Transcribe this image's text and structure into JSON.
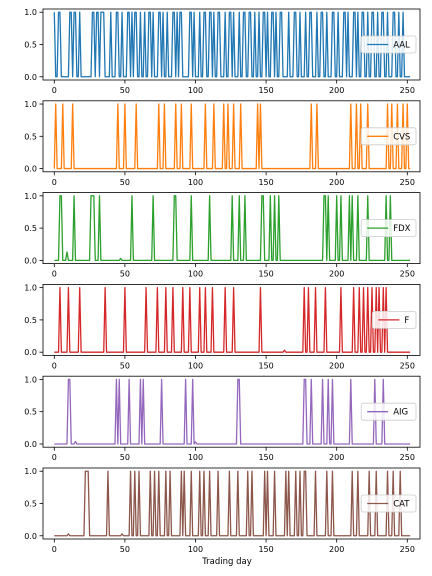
{
  "chart_data": {
    "type": "line",
    "xlabel": "Trading day",
    "xlim": [
      -8,
      259
    ],
    "x_ticks": [
      0,
      50,
      100,
      150,
      200,
      250
    ],
    "ylim": [
      -0.05,
      1.05
    ],
    "y_ticks": [
      0.0,
      0.5,
      1.0
    ],
    "x_start": 0,
    "x_end": 252,
    "legend_position": "right",
    "panels": [
      {
        "name": "AAL",
        "color": "#1f77b4",
        "events": [
          [
            0,
            1
          ],
          [
            3,
            2
          ],
          [
            11,
            2
          ],
          [
            14,
            2
          ],
          [
            18,
            1
          ],
          [
            27,
            2
          ],
          [
            30,
            2
          ],
          [
            33,
            3
          ],
          [
            40,
            1
          ],
          [
            44,
            2
          ],
          [
            48,
            1
          ],
          [
            52,
            2
          ],
          [
            55,
            1
          ],
          [
            57,
            2
          ],
          [
            61,
            1
          ],
          [
            64,
            1
          ],
          [
            67,
            2
          ],
          [
            70,
            1
          ],
          [
            74,
            2
          ],
          [
            77,
            1
          ],
          [
            80,
            1
          ],
          [
            84,
            2
          ],
          [
            87,
            1
          ],
          [
            89,
            2
          ],
          [
            96,
            2
          ],
          [
            99,
            1
          ],
          [
            103,
            1
          ],
          [
            106,
            2
          ],
          [
            110,
            2
          ],
          [
            113,
            1
          ],
          [
            116,
            2
          ],
          [
            121,
            1
          ],
          [
            124,
            2
          ],
          [
            127,
            1
          ],
          [
            131,
            1
          ],
          [
            134,
            2
          ],
          [
            138,
            2
          ],
          [
            142,
            1
          ],
          [
            145,
            1
          ],
          [
            148,
            2
          ],
          [
            151,
            1
          ],
          [
            154,
            2
          ],
          [
            157,
            1
          ],
          [
            160,
            2
          ],
          [
            166,
            1
          ],
          [
            170,
            2
          ],
          [
            174,
            1
          ],
          [
            178,
            1
          ],
          [
            181,
            2
          ],
          [
            186,
            1
          ],
          [
            189,
            2
          ],
          [
            193,
            1
          ],
          [
            197,
            2
          ],
          [
            201,
            1
          ],
          [
            205,
            2
          ],
          [
            208,
            1
          ],
          [
            212,
            2
          ],
          [
            215,
            1
          ],
          [
            218,
            2
          ],
          [
            222,
            1
          ],
          [
            225,
            2
          ],
          [
            229,
            1
          ],
          [
            232,
            2
          ],
          [
            236,
            1
          ],
          [
            240,
            2
          ],
          [
            244,
            1
          ],
          [
            247,
            1
          ]
        ]
      },
      {
        "name": "CVS",
        "color": "#ff7f0e",
        "events": [
          [
            1,
            1
          ],
          [
            6,
            1
          ],
          [
            13,
            1
          ],
          [
            45,
            1
          ],
          [
            50,
            1
          ],
          [
            58,
            1
          ],
          [
            74,
            1
          ],
          [
            78,
            1
          ],
          [
            86,
            1
          ],
          [
            90,
            1
          ],
          [
            97,
            1
          ],
          [
            107,
            1
          ],
          [
            113,
            1
          ],
          [
            120,
            1
          ],
          [
            123,
            1
          ],
          [
            127,
            1
          ],
          [
            132,
            1
          ],
          [
            144,
            1
          ],
          [
            146,
            1
          ],
          [
            182,
            1
          ],
          [
            186,
            1
          ],
          [
            210,
            1
          ],
          [
            214,
            1
          ],
          [
            217,
            1
          ],
          [
            222,
            1
          ],
          [
            236,
            1
          ],
          [
            239,
            1
          ],
          [
            243,
            1
          ],
          [
            247,
            1
          ],
          [
            250,
            1
          ]
        ]
      },
      {
        "name": "FDX",
        "color": "#2ca02c",
        "events": [
          [
            4,
            2
          ],
          [
            14,
            1
          ],
          [
            26,
            3
          ],
          [
            32,
            1
          ],
          [
            55,
            1
          ],
          [
            70,
            1
          ],
          [
            85,
            2
          ],
          [
            97,
            1
          ],
          [
            110,
            1
          ],
          [
            126,
            1
          ],
          [
            131,
            1
          ],
          [
            135,
            1
          ],
          [
            147,
            2
          ],
          [
            153,
            1
          ],
          [
            156,
            1
          ],
          [
            159,
            1
          ],
          [
            191,
            2
          ],
          [
            194,
            1
          ],
          [
            200,
            1
          ],
          [
            203,
            1
          ],
          [
            209,
            1
          ],
          [
            211,
            1
          ],
          [
            215,
            1
          ],
          [
            222,
            1
          ],
          [
            235,
            1
          ],
          [
            238,
            1
          ]
        ],
        "small": [
          [
            9,
            0.13
          ],
          [
            47,
            0.03
          ]
        ]
      },
      {
        "name": "F",
        "color": "#d62728",
        "events": [
          [
            4,
            1
          ],
          [
            10,
            1
          ],
          [
            18,
            1
          ],
          [
            36,
            1
          ],
          [
            50,
            1
          ],
          [
            65,
            1
          ],
          [
            73,
            1
          ],
          [
            79,
            1
          ],
          [
            84,
            1
          ],
          [
            91,
            1
          ],
          [
            96,
            1
          ],
          [
            103,
            1
          ],
          [
            107,
            1
          ],
          [
            112,
            1
          ],
          [
            121,
            1
          ],
          [
            127,
            1
          ],
          [
            146,
            1
          ],
          [
            177,
            1
          ],
          [
            180,
            1
          ],
          [
            185,
            1
          ],
          [
            192,
            1
          ],
          [
            203,
            1
          ],
          [
            212,
            1
          ],
          [
            216,
            1
          ],
          [
            219,
            1
          ],
          [
            222,
            1
          ],
          [
            225,
            1
          ],
          [
            228,
            1
          ],
          [
            230,
            1
          ],
          [
            233,
            1
          ],
          [
            235,
            1
          ]
        ],
        "small": [
          [
            163,
            0.03
          ]
        ]
      },
      {
        "name": "AIG",
        "color": "#9467bd",
        "events": [
          [
            10,
            2
          ],
          [
            44,
            1
          ],
          [
            46,
            1
          ],
          [
            53,
            1
          ],
          [
            61,
            1
          ],
          [
            63,
            1
          ],
          [
            76,
            1
          ],
          [
            93,
            1
          ],
          [
            98,
            1
          ],
          [
            130,
            2
          ],
          [
            177,
            2
          ],
          [
            182,
            1
          ],
          [
            190,
            1
          ],
          [
            194,
            1
          ],
          [
            197,
            1
          ],
          [
            210,
            1
          ],
          [
            227,
            1
          ],
          [
            233,
            1
          ]
        ],
        "small": [
          [
            15,
            0.04
          ],
          [
            100,
            0.03
          ]
        ]
      },
      {
        "name": "CAT",
        "color": "#8c564b",
        "events": [
          [
            22,
            3
          ],
          [
            38,
            1
          ],
          [
            54,
            1
          ],
          [
            57,
            1
          ],
          [
            60,
            1
          ],
          [
            68,
            1
          ],
          [
            71,
            1
          ],
          [
            74,
            1
          ],
          [
            79,
            1
          ],
          [
            82,
            1
          ],
          [
            90,
            1
          ],
          [
            92,
            1
          ],
          [
            97,
            1
          ],
          [
            103,
            1
          ],
          [
            106,
            1
          ],
          [
            110,
            1
          ],
          [
            116,
            1
          ],
          [
            124,
            1
          ],
          [
            130,
            1
          ],
          [
            137,
            1
          ],
          [
            140,
            1
          ],
          [
            149,
            1
          ],
          [
            151,
            1
          ],
          [
            156,
            1
          ],
          [
            164,
            1
          ],
          [
            166,
            1
          ],
          [
            171,
            1
          ],
          [
            174,
            1
          ],
          [
            177,
            1
          ],
          [
            178,
            1
          ],
          [
            185,
            1
          ],
          [
            193,
            1
          ],
          [
            197,
            1
          ],
          [
            211,
            1
          ],
          [
            215,
            1
          ],
          [
            223,
            1
          ],
          [
            228,
            1
          ],
          [
            236,
            1
          ],
          [
            240,
            1
          ],
          [
            245,
            1
          ]
        ],
        "small": [
          [
            10,
            0.03
          ],
          [
            48,
            0.03
          ]
        ]
      }
    ]
  }
}
